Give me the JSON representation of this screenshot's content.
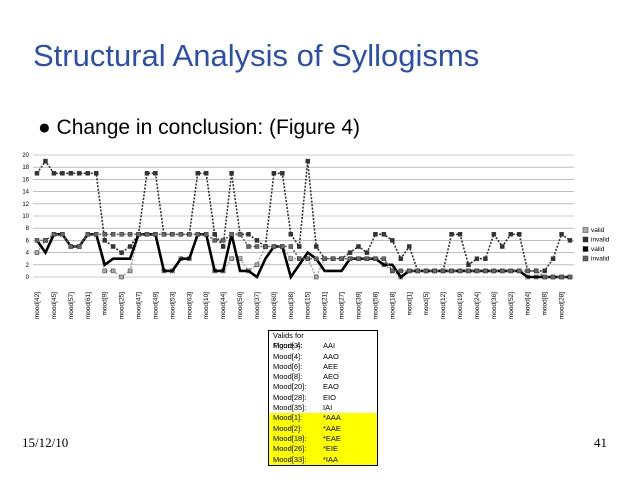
{
  "title": "Structural Analysis of Syllogisms",
  "bullet": "Change in conclusion: (Figure 4)",
  "chart_data": {
    "type": "line",
    "categories": [
      "mood[42]",
      null,
      "mood[45]",
      null,
      "mood[57]",
      null,
      "mood[61]",
      null,
      "mood[9]",
      null,
      "mood[25]",
      null,
      "mood[47]",
      null,
      "mood[49]",
      null,
      "mood[53]",
      null,
      "mood[63]",
      null,
      "mood[10]",
      null,
      "mood[44]",
      null,
      "mood[50]",
      null,
      "mood[37]",
      null,
      "mood[60]",
      null,
      "mood[38]",
      null,
      "mood[15]",
      null,
      "mood[21]",
      null,
      "mood[27]",
      null,
      "mood[39]",
      null,
      "mood[58]",
      null,
      "mood[18]",
      null,
      "mood[1]",
      null,
      "mood[5]",
      null,
      "mood[12]",
      null,
      "mood[19]",
      null,
      "mood[24]",
      null,
      "mood[36]",
      null,
      "mood[52]",
      null,
      "mood[4]",
      null,
      "mood[8]",
      null,
      "mood[28]",
      null
    ],
    "series": [
      {
        "name": "valid",
        "color": "#aaaaaa",
        "marker": true,
        "dash": true,
        "values": [
          4,
          6,
          7,
          7,
          5,
          5,
          7,
          7,
          1,
          1,
          0,
          1,
          7,
          7,
          7,
          1,
          1,
          3,
          3,
          7,
          7,
          1,
          1,
          3,
          3,
          1,
          2,
          5,
          5,
          5,
          3,
          3,
          3,
          0,
          3,
          3,
          3,
          3,
          3,
          3,
          3,
          2,
          1,
          0,
          1,
          1,
          1,
          1,
          1,
          1,
          1,
          1,
          1,
          1,
          1,
          1,
          1,
          1,
          0,
          0,
          0,
          0,
          0,
          0
        ]
      },
      {
        "name": "invalid",
        "color": "#333333",
        "marker": true,
        "dash": true,
        "values": [
          17,
          19,
          17,
          17,
          17,
          17,
          17,
          17,
          6,
          5,
          4,
          5,
          7,
          17,
          17,
          7,
          7,
          7,
          7,
          17,
          17,
          7,
          5,
          17,
          7,
          7,
          6,
          5,
          17,
          17,
          7,
          5,
          19,
          5,
          3,
          3,
          3,
          4,
          5,
          4,
          7,
          7,
          6,
          3,
          5,
          1,
          1,
          1,
          1,
          7,
          7,
          2,
          3,
          3,
          7,
          5,
          7,
          7,
          1,
          1,
          1,
          3,
          7,
          6
        ]
      },
      {
        "name": "valid",
        "color": "#000000",
        "marker": false,
        "dash": false,
        "values": [
          6,
          4,
          7,
          7,
          5,
          5,
          7,
          7,
          2,
          3,
          3,
          3,
          7,
          7,
          7,
          1,
          1,
          3,
          3,
          7,
          7,
          1,
          1,
          7,
          1,
          1,
          0,
          3,
          5,
          5,
          0,
          2,
          4,
          3,
          1,
          1,
          1,
          3,
          3,
          3,
          3,
          2,
          2,
          0,
          1,
          1,
          1,
          1,
          1,
          1,
          1,
          1,
          1,
          1,
          1,
          1,
          1,
          1,
          0,
          0,
          0,
          0,
          0,
          0
        ]
      },
      {
        "name": "invalid",
        "color": "#666666",
        "marker": true,
        "dash": true,
        "values": [
          6,
          6,
          7,
          7,
          5,
          5,
          7,
          7,
          7,
          7,
          7,
          7,
          7,
          7,
          7,
          7,
          7,
          7,
          7,
          7,
          7,
          6,
          6,
          7,
          7,
          5,
          5,
          5,
          5,
          5,
          5,
          3,
          3,
          3,
          3,
          3,
          3,
          3,
          3,
          3,
          3,
          3,
          1,
          1,
          1,
          1,
          1,
          1,
          1,
          1,
          1,
          1,
          1,
          1,
          1,
          1,
          1,
          1,
          1,
          1,
          0,
          0,
          0,
          0
        ]
      }
    ],
    "ylim": [
      0,
      20
    ],
    "yticks": [
      0,
      2,
      4,
      6,
      8,
      10,
      12,
      14,
      16,
      18,
      20
    ],
    "grid": true,
    "legend": "right"
  },
  "table": {
    "title": "Valids for Figure 4:",
    "rows": [
      [
        "Mood[3]:",
        "AAI"
      ],
      [
        "Mood[4]:",
        "AAO"
      ],
      [
        "Mood[6]:",
        "AEE"
      ],
      [
        "Mood[8]:",
        "AEO"
      ],
      [
        "Mood[20]:",
        "EAO"
      ],
      [
        "Mood[28]:",
        "EIO"
      ],
      [
        "Mood[35]:",
        "IAI"
      ]
    ],
    "highlighted_rows": [
      [
        "Mood[1]:",
        "*AAA"
      ],
      [
        "Mood[2]:",
        "*AAE"
      ],
      [
        "Mood[18]:",
        "*EAE"
      ],
      [
        "Mood[26]:",
        "*EIE"
      ],
      [
        "Mood[33]:",
        "*IAA"
      ]
    ]
  },
  "footer": {
    "date": "15/12/10",
    "page": "41"
  }
}
